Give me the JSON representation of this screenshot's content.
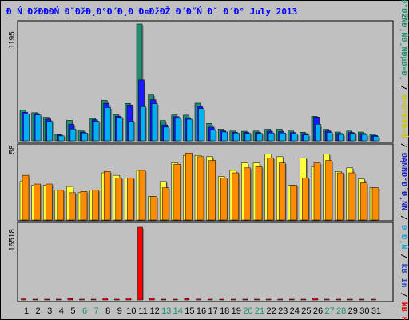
{
  "title": "Đ Ń ĐžĐĐĐŃ Đ˘ĐžĐ¸Đ°Đ´Đ¸Đ Đ¤ĐžĐŽ Đ´Đ˝Ń Đ˘ Đ´Đ° July 2013",
  "right_legend": {
    "segments": [
      {
        "text": "Đ°ĐžŃĐ¸ŃĐ¸ŃĐµĐ»Đ¸",
        "color": "#1f8f6f"
      },
      {
        "text": " / ",
        "color": "#000000"
      },
      {
        "text": "Đ¤Đ°ĐšĐ»Ń",
        "color": "#c8c800"
      },
      {
        "text": " / ",
        "color": "#000000"
      },
      {
        "text": "ĐĄŃŃĐ°Đ˝Đ¸ŃŃ",
        "color": "#2020c0"
      },
      {
        "text": " / ",
        "color": "#000000"
      },
      {
        "text": "Đ Đ¸Ń",
        "color": "#20a0d0"
      },
      {
        "text": " / ",
        "color": "#000000"
      },
      {
        "text": "kB In",
        "color": "#2040c0"
      },
      {
        "text": " / ",
        "color": "#000000"
      },
      {
        "text": "kB F",
        "color": "#e00000"
      }
    ]
  },
  "colors": {
    "visits": "#1f8f6f",
    "pages": "#1a1aff",
    "hits": "#00b0f0",
    "files": "#ffff40",
    "sites": "#ff8c00",
    "kbytes": "#ff0000",
    "weekend": "#1f8f6f",
    "weekday": "#000000"
  },
  "chart_data": [
    {
      "type": "bar",
      "name": "daily-requests",
      "ylim": [
        0,
        1195
      ],
      "y_tick_label": "1195",
      "categories": [
        "1",
        "2",
        "3",
        "4",
        "5",
        "6",
        "7",
        "8",
        "9",
        "10",
        "11",
        "12",
        "13",
        "14",
        "15",
        "16",
        "17",
        "18",
        "19",
        "20",
        "21",
        "22",
        "23",
        "24",
        "25",
        "26",
        "27",
        "28",
        "29",
        "30",
        "31"
      ],
      "series": [
        {
          "key": "visits",
          "values": [
            313,
            288,
            241,
            66,
            210,
            108,
            229,
            414,
            269,
            382,
            1195,
            470,
            207,
            265,
            263,
            385,
            178,
            119,
            100,
            98,
            100,
            119,
            119,
            100,
            88,
            251,
            118,
            90,
            100,
            90,
            69
          ]
        },
        {
          "key": "pages",
          "values": [
            292,
            279,
            222,
            59,
            168,
            90,
            216,
            383,
            252,
            365,
            623,
            420,
            163,
            247,
            236,
            351,
            139,
            102,
            88,
            86,
            86,
            98,
            94,
            85,
            74,
            243,
            100,
            75,
            85,
            75,
            56
          ]
        },
        {
          "key": "hits",
          "values": [
            275,
            265,
            200,
            50,
            120,
            80,
            200,
            340,
            240,
            200,
            350,
            380,
            140,
            230,
            220,
            330,
            110,
            90,
            80,
            75,
            75,
            80,
            80,
            70,
            60,
            170,
            85,
            65,
            75,
            65,
            45
          ]
        }
      ]
    },
    {
      "type": "bar",
      "name": "daily-sites",
      "ylim": [
        0,
        58
      ],
      "y_tick_label": "58",
      "categories": [
        "1",
        "2",
        "3",
        "4",
        "5",
        "6",
        "7",
        "8",
        "9",
        "10",
        "11",
        "12",
        "13",
        "14",
        "15",
        "16",
        "17",
        "18",
        "19",
        "20",
        "21",
        "22",
        "23",
        "24",
        "25",
        "26",
        "27",
        "28",
        "29",
        "30",
        "31"
      ],
      "series": [
        {
          "key": "files",
          "values": [
            31,
            28,
            28,
            24,
            27,
            22,
            24,
            38,
            36,
            34,
            40,
            19,
            31,
            46,
            52,
            52,
            51,
            35,
            40,
            46,
            46,
            53,
            51,
            28,
            50,
            43,
            53,
            39,
            42,
            33,
            26
          ]
        },
        {
          "key": "sites",
          "values": [
            36,
            29,
            29,
            24,
            22,
            23,
            24,
            39,
            34,
            34,
            40,
            19,
            26,
            45,
            54,
            51,
            48,
            34,
            38,
            42,
            43,
            50,
            46,
            28,
            34,
            46,
            48,
            38,
            38,
            30,
            26
          ]
        }
      ]
    },
    {
      "type": "bar",
      "name": "daily-kbytes",
      "ylim": [
        0,
        16518
      ],
      "y_tick_label": "16518",
      "categories": [
        "1",
        "2",
        "3",
        "4",
        "5",
        "6",
        "7",
        "8",
        "9",
        "10",
        "11",
        "12",
        "13",
        "14",
        "15",
        "16",
        "17",
        "18",
        "19",
        "20",
        "21",
        "22",
        "23",
        "24",
        "25",
        "26",
        "27",
        "28",
        "29",
        "30",
        "31"
      ],
      "series": [
        {
          "key": "kbytes",
          "values": [
            250,
            120,
            150,
            150,
            300,
            150,
            120,
            400,
            180,
            450,
            16518,
            400,
            150,
            150,
            300,
            200,
            150,
            150,
            150,
            150,
            150,
            150,
            150,
            150,
            150,
            450,
            150,
            150,
            150,
            150,
            150
          ]
        }
      ]
    }
  ],
  "weekend_days": [
    "6",
    "7",
    "13",
    "14",
    "20",
    "21",
    "27",
    "28"
  ]
}
